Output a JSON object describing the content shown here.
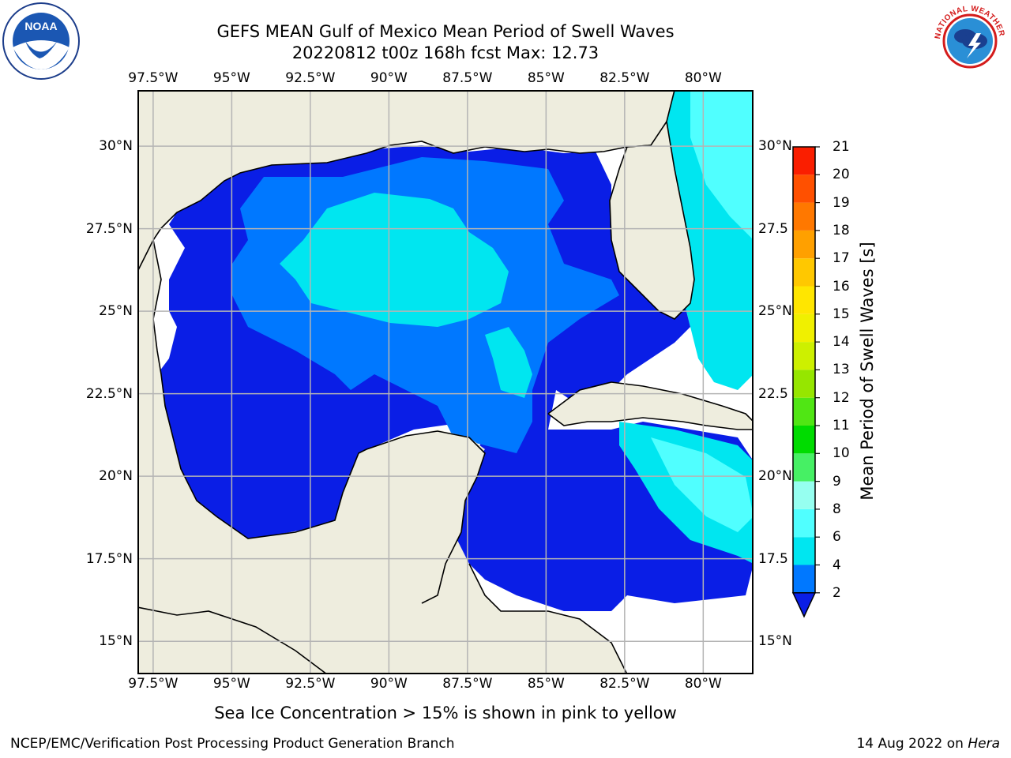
{
  "title": {
    "line1": "GEFS MEAN Gulf of Mexico Mean Period of Swell Waves",
    "line2": "20220812 t00z 168h fcst   Max: 12.73"
  },
  "map": {
    "lon_ticks": [
      "97.5°W",
      "95°W",
      "92.5°W",
      "90°W",
      "87.5°W",
      "85°W",
      "82.5°W",
      "80°W"
    ],
    "lat_ticks_left": [
      "30°N",
      "27.5°N",
      "25°N",
      "22.5°N",
      "20°N",
      "17.5°N",
      "15°N"
    ],
    "lat_ticks_right": [
      "30°N",
      "27.5",
      "25°N",
      "22.5",
      "20°N",
      "17.5",
      "15°N"
    ],
    "lon_range": [
      -98,
      -78.4
    ],
    "lat_range": [
      14,
      31.7
    ],
    "colors": {
      "land": "#eeedde",
      "water_default": "#ffffff",
      "grid": "#b4b4b4"
    }
  },
  "colorbar": {
    "label": "Mean Period of Swell Waves [s]",
    "tick_labels": [
      "2",
      "4",
      "6",
      "8",
      "9",
      "10",
      "11",
      "12",
      "13",
      "14",
      "15",
      "16",
      "17",
      "18",
      "19",
      "20",
      "21"
    ],
    "colors": [
      "#0a1ee6",
      "#0078ff",
      "#00e6f0",
      "#50ffff",
      "#96fff0",
      "#46f064",
      "#00dc00",
      "#50e614",
      "#96e600",
      "#cdf000",
      "#f0f000",
      "#ffe600",
      "#ffc800",
      "#ffa000",
      "#ff7800",
      "#ff5000",
      "#fa1e00",
      "#f00000"
    ]
  },
  "note": "Sea Ice Concentration > 15% is shown in pink to yellow",
  "footer": {
    "left": "NCEP/EMC/Verification Post Processing Product Generation Branch",
    "right_date": "14 Aug 2022 on ",
    "right_machine": "Hera"
  },
  "logos": {
    "noaa_text": "NOAA",
    "nws_text": "NATIONAL WEATHER SERVICE"
  }
}
